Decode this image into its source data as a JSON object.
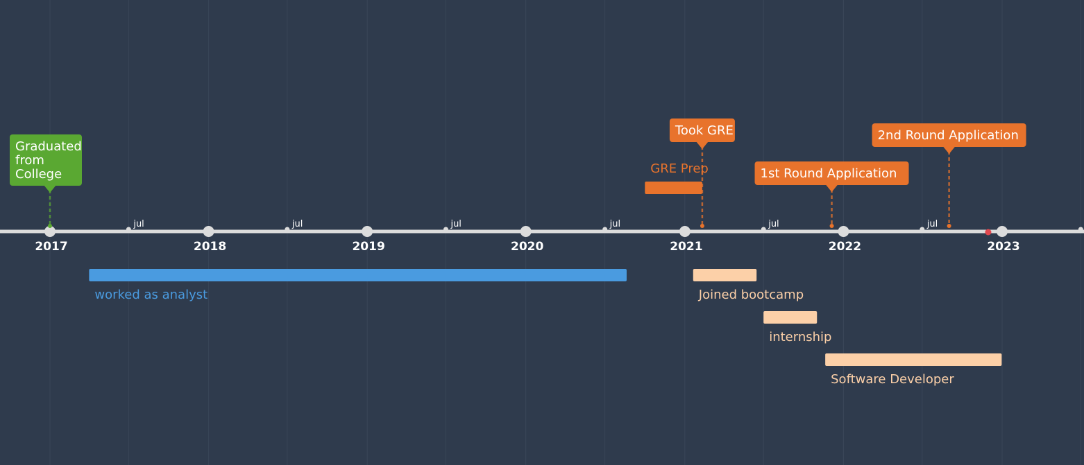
{
  "chart_data": {
    "type": "timeline",
    "colors": {
      "background": "#2f3b4d",
      "gridline": "#3a4658",
      "axis": "#dcdcdc",
      "tick_text": "#ffffff",
      "green": "#5aa832",
      "orange": "#e8732c",
      "blue": "#4a9be0",
      "peach": "#fcd0a8",
      "today_marker": "#e0484f"
    },
    "axis": {
      "start": "2016-09-01",
      "end": "2023-07-15",
      "year_ticks": [
        "2017",
        "2018",
        "2019",
        "2020",
        "2021",
        "2022",
        "2023"
      ],
      "mid_year_label": "jul",
      "today": "2022-11-30"
    },
    "milestones": [
      {
        "label": "Graduated from College",
        "lines": [
          "Graduated",
          "from",
          "College"
        ],
        "date": "2017-01-01",
        "color": "green",
        "text_color": "#ffffff"
      },
      {
        "label": "Took GRE",
        "lines": [
          "Took GRE"
        ],
        "date": "2021-02-10",
        "color": "orange",
        "text_color": "#ffffff"
      },
      {
        "label": "1st Round Application",
        "lines": [
          "1st Round Application"
        ],
        "date": "2021-12-05",
        "color": "orange",
        "text_color": "#ffffff"
      },
      {
        "label": "2nd Round Application",
        "lines": [
          "2nd Round Application"
        ],
        "date": "2022-09-01",
        "color": "orange",
        "text_color": "#ffffff"
      }
    ],
    "ranges": [
      {
        "label": "GRE Prep",
        "start": "2020-10-01",
        "end": "2021-02-10",
        "color": "orange",
        "label_color": "#e8732c",
        "side": "above"
      },
      {
        "label": "worked as analyst",
        "start": "2017-04-01",
        "end": "2020-08-20",
        "color": "blue",
        "label_color": "#4a9be0",
        "side": "below"
      },
      {
        "label": "Joined bootcamp",
        "start": "2021-01-20",
        "end": "2021-06-15",
        "color": "peach",
        "label_color": "#fcd0a8",
        "side": "below"
      },
      {
        "label": "internship",
        "start": "2021-07-01",
        "end": "2021-11-01",
        "color": "peach",
        "label_color": "#fcd0a8",
        "side": "below"
      },
      {
        "label": "Software Developer",
        "start": "2021-11-20",
        "end": "2022-12-31",
        "color": "peach",
        "label_color": "#fcd0a8",
        "side": "below"
      }
    ]
  }
}
